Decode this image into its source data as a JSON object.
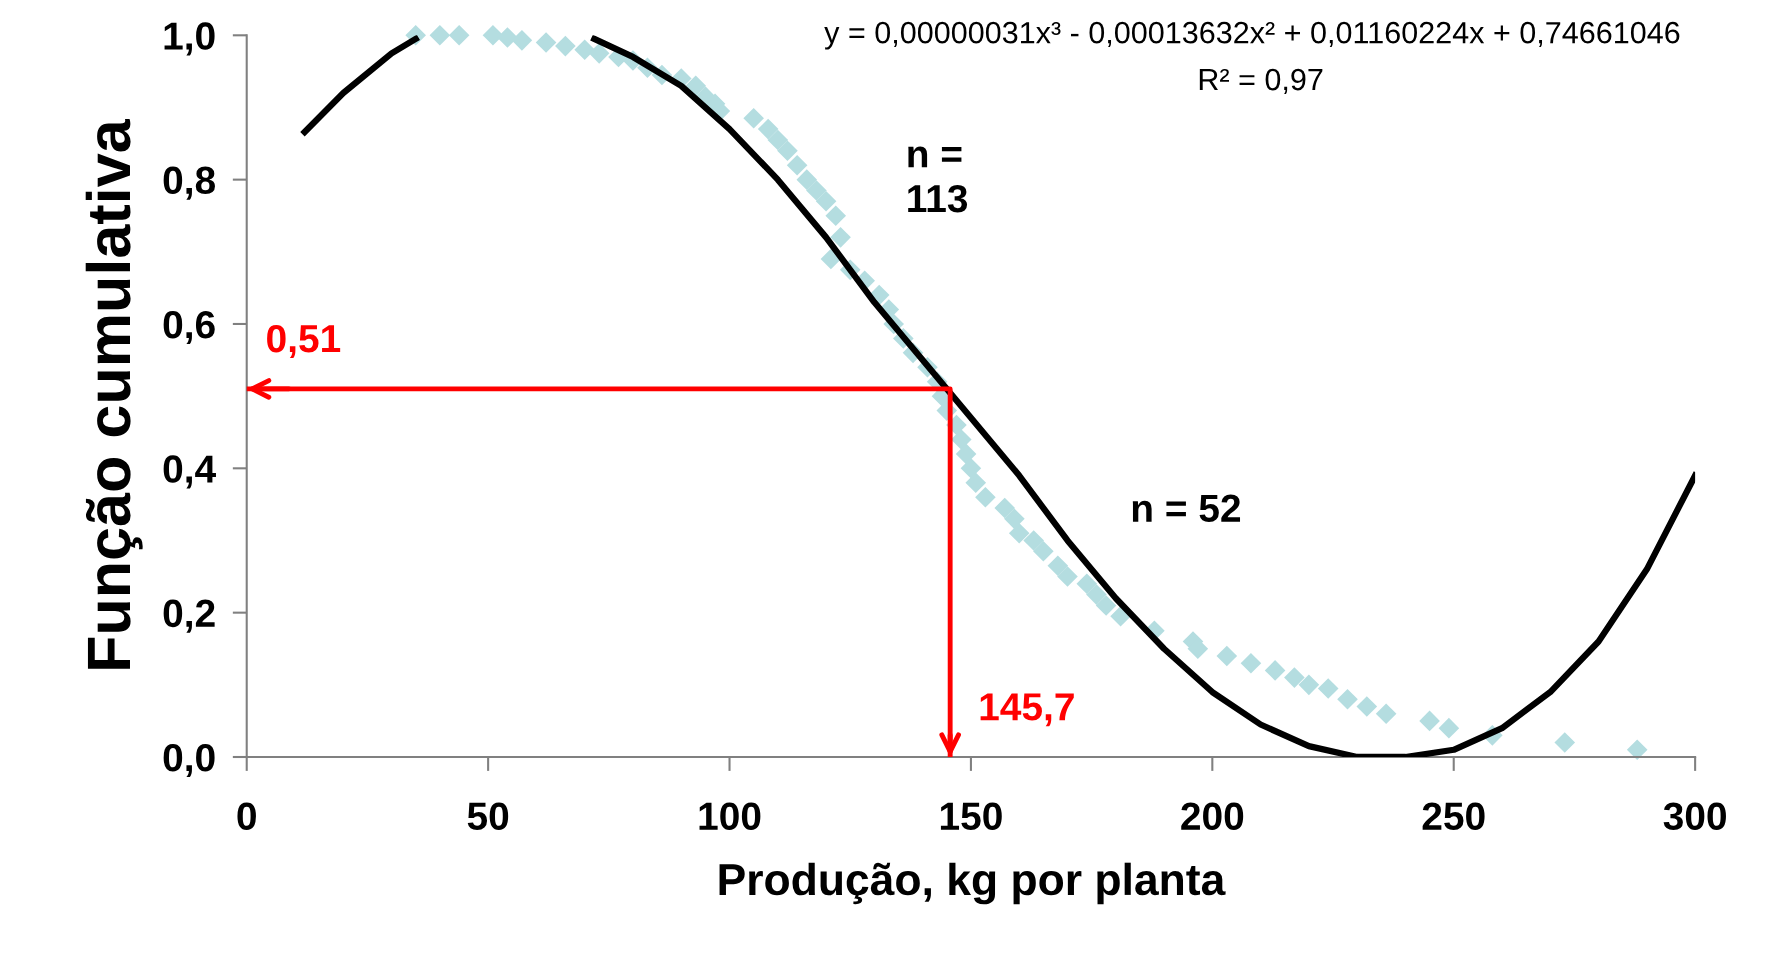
{
  "chart_data": {
    "type": "scatter",
    "xlabel": "Produção, kg por planta",
    "ylabel": "Função cumulativa",
    "xlim": [
      0,
      300
    ],
    "xticks": [
      0,
      50,
      100,
      150,
      200,
      250,
      300
    ],
    "ylim": [
      0,
      1.0
    ],
    "yticks": [
      {
        "value": 0,
        "label": "0,0"
      },
      {
        "value": 0.2,
        "label": "0,2"
      },
      {
        "value": 0.4,
        "label": "0,4"
      },
      {
        "value": 0.6,
        "label": "0,6"
      },
      {
        "value": 0.8,
        "label": "0,8"
      },
      {
        "value": 1.0,
        "label": "1,0"
      }
    ],
    "grid": false,
    "legend": false,
    "marker": "diamond",
    "series": [
      {
        "color": "#b4dde0",
        "x": [
          35,
          40,
          44,
          51,
          54,
          57,
          62,
          66,
          70,
          73,
          77,
          80,
          83,
          86,
          90,
          93,
          95,
          97,
          98,
          105,
          108,
          110,
          112,
          114,
          116,
          118,
          120,
          122,
          123,
          121,
          125,
          128,
          131,
          133,
          134,
          136,
          138,
          141,
          143,
          144,
          145,
          147,
          148,
          149,
          150,
          151,
          153,
          157,
          159,
          160,
          163,
          165,
          168,
          170,
          174,
          176,
          178,
          181,
          188,
          196,
          197,
          203,
          208,
          213,
          217,
          220,
          224,
          228,
          232,
          236,
          245,
          249,
          258,
          273,
          288
        ],
        "values": [
          1.0,
          1.0,
          1.0,
          1.0,
          0.997,
          0.993,
          0.99,
          0.985,
          0.98,
          0.975,
          0.97,
          0.965,
          0.955,
          0.945,
          0.94,
          0.93,
          0.915,
          0.905,
          0.895,
          0.885,
          0.87,
          0.855,
          0.84,
          0.82,
          0.8,
          0.785,
          0.77,
          0.75,
          0.72,
          0.69,
          0.675,
          0.66,
          0.64,
          0.62,
          0.6,
          0.58,
          0.56,
          0.54,
          0.52,
          0.5,
          0.48,
          0.46,
          0.44,
          0.42,
          0.4,
          0.38,
          0.36,
          0.345,
          0.33,
          0.31,
          0.3,
          0.285,
          0.265,
          0.25,
          0.24,
          0.225,
          0.21,
          0.195,
          0.175,
          0.16,
          0.15,
          0.14,
          0.13,
          0.12,
          0.11,
          0.1,
          0.095,
          0.08,
          0.07,
          0.06,
          0.05,
          0.04,
          0.03,
          0.02,
          0.01
        ]
      },
      {
        "type": "line",
        "color": "#000000",
        "marker": "none",
        "x": [
          12,
          20,
          30,
          35,
          50,
          72,
          80,
          90,
          100,
          110,
          120,
          130,
          140,
          150,
          160,
          170,
          180,
          190,
          200,
          210,
          220,
          230,
          240,
          250,
          260,
          270,
          280,
          290,
          300
        ],
        "values": [
          0.866,
          0.92,
          0.975,
          0.995,
          null,
          0.995,
          0.97,
          0.93,
          0.87,
          0.8,
          0.72,
          0.63,
          0.55,
          0.47,
          0.39,
          0.3,
          0.22,
          0.15,
          0.09,
          0.045,
          0.015,
          0.0,
          0.0,
          0.01,
          0.04,
          0.09,
          0.16,
          0.26,
          0.39
        ]
      },
      {
        "type": "line",
        "color": "#ff0000",
        "marker": "none",
        "x": [
          0,
          145.7,
          145.7
        ],
        "values": [
          0.51,
          0.51,
          0
        ]
      }
    ],
    "annotations": [
      "y = 0,00000031x³ - 0,00013632x² + 0,01160224x + 0,74661046",
      "R² = 0,97",
      "n =\n113",
      "n = 52",
      "0,51",
      "145,7"
    ]
  }
}
